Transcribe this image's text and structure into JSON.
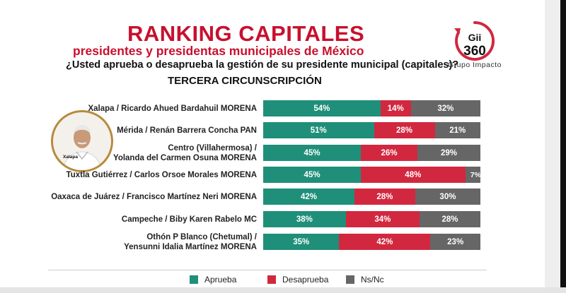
{
  "header": {
    "title": "RANKING CAPITALES",
    "subtitle": "presidentes y presidentas municipales de México",
    "question": "¿Usted aprueba o desaprueba la gestión de su presidente municipal (capitales)?",
    "section": "TERCERA CIRCUNSCRIPCIÓN"
  },
  "logo": {
    "line1": "Gii",
    "line2": "360",
    "name": "Grupo Impacto"
  },
  "avatar": {
    "tag": "Xalapa"
  },
  "colors": {
    "aprueba": "#1f8f79",
    "desaprueba": "#d1283f",
    "nsnc": "#666666",
    "title": "#c8102e"
  },
  "chart_data": {
    "type": "bar",
    "orientation": "horizontal-stacked-100",
    "title": "RANKING CAPITALES",
    "categories": [
      [
        "Xalapa / Ricardo Ahued Bardahuil MORENA"
      ],
      [
        "Mérida / Renán Barrera Concha PAN"
      ],
      [
        "Centro (Villahermosa) /",
        "Yolanda del Carmen Osuna MORENA"
      ],
      [
        "Tuxtla Gutiérrez / Carlos Orsoe Morales MORENA"
      ],
      [
        "Oaxaca de Juárez / Francisco Martínez Neri MORENA"
      ],
      [
        "Campeche / Biby Karen Rabelo MC"
      ],
      [
        "Othón P Blanco (Chetumal) /",
        "Yensunni Idalia Martínez MORENA"
      ]
    ],
    "series": [
      {
        "name": "Aprueba",
        "values": [
          54,
          51,
          45,
          45,
          42,
          38,
          35
        ]
      },
      {
        "name": "Desaprueba",
        "values": [
          14,
          28,
          26,
          48,
          28,
          34,
          42
        ]
      },
      {
        "name": "Ns/Nc",
        "values": [
          32,
          21,
          29,
          7,
          30,
          28,
          23
        ]
      }
    ],
    "unit": "%",
    "xlim": [
      0,
      100
    ],
    "legend_position": "bottom"
  }
}
